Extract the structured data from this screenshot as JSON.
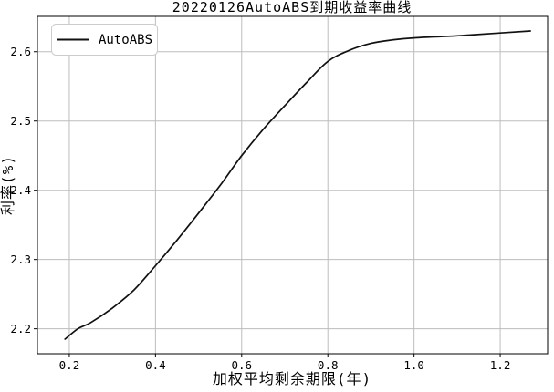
{
  "figure": {
    "title": "20220126AutoABS到期收益率曲线"
  },
  "chart_data": {
    "type": "line",
    "title": "20220126AutoABS到期收益率曲线",
    "xlabel": "加权平均剩余期限(年)",
    "ylabel": "利率(%)",
    "xlim": [
      0.126,
      1.31
    ],
    "ylim": [
      2.164,
      2.651
    ],
    "x_ticks": [
      0.2,
      0.4,
      0.6,
      0.8,
      1.0,
      1.2
    ],
    "y_ticks": [
      2.2,
      2.3,
      2.4,
      2.5,
      2.6
    ],
    "grid": true,
    "legend_position": "upper left",
    "series": [
      {
        "name": "AutoABS",
        "color": "#111111",
        "x": [
          0.19,
          0.22,
          0.25,
          0.3,
          0.35,
          0.4,
          0.45,
          0.5,
          0.55,
          0.6,
          0.65,
          0.7,
          0.75,
          0.8,
          0.85,
          0.9,
          0.95,
          1.0,
          1.1,
          1.2,
          1.27
        ],
        "y": [
          2.185,
          2.2,
          2.209,
          2.23,
          2.256,
          2.291,
          2.328,
          2.367,
          2.407,
          2.45,
          2.488,
          2.522,
          2.555,
          2.586,
          2.602,
          2.612,
          2.617,
          2.62,
          2.623,
          2.627,
          2.63
        ]
      }
    ]
  },
  "colors": {
    "grid": "#bdbdbd",
    "spine": "#000000",
    "legend_border": "#cccccc",
    "background": "#ffffff",
    "text": "#000000"
  }
}
